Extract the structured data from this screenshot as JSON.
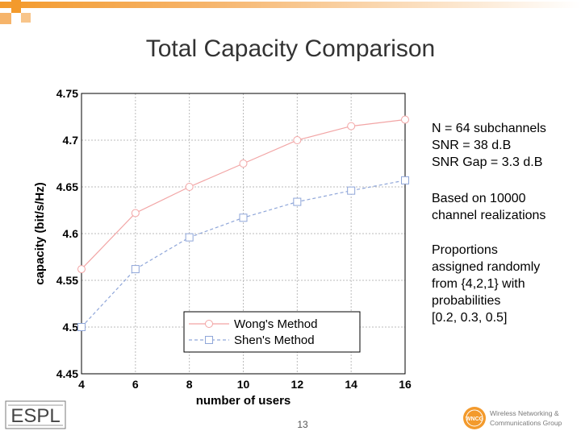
{
  "slide": {
    "title": "Total Capacity Comparison",
    "page_number": "13",
    "notes": [
      [
        "N = 64 subchannels",
        "SNR = 38 d.B",
        "SNR Gap = 3.3 d.B"
      ],
      [
        "Based on 10000",
        "channel realizations"
      ],
      [
        "Proportions",
        "assigned randomly",
        "from {4,2,1} with",
        "probabilities",
        "[0.2, 0.3, 0.5]"
      ]
    ],
    "logos": {
      "left": "ESPL",
      "right_line1": "Wireless Networking &",
      "right_line2": "Communications Group",
      "right_badge": "WNCG"
    }
  },
  "colors": {
    "wong": "#f2a5a5",
    "shen": "#8fa6d9",
    "grid": "#bbbbbb",
    "accent": "#f39a2c"
  },
  "chart_data": {
    "type": "line",
    "xlabel": "number of users",
    "ylabel": "capacity (bit/s/Hz)",
    "x": [
      4,
      6,
      8,
      10,
      12,
      14,
      16
    ],
    "xlim": [
      4,
      16
    ],
    "ylim": [
      4.45,
      4.75
    ],
    "xticks": [
      "4",
      "6",
      "8",
      "10",
      "12",
      "14",
      "16"
    ],
    "yticks": [
      "4.45",
      "4.5",
      "4.55",
      "4.6",
      "4.65",
      "4.7",
      "4.75"
    ],
    "grid": true,
    "legend_position": "lower-left",
    "series": [
      {
        "name": "Wong's Method",
        "marker": "circle",
        "values": [
          4.562,
          4.622,
          4.65,
          4.675,
          4.7,
          4.715,
          4.722
        ]
      },
      {
        "name": "Shen's Method",
        "marker": "square",
        "values": [
          4.5,
          4.562,
          4.596,
          4.617,
          4.634,
          4.646,
          4.657
        ]
      }
    ]
  }
}
